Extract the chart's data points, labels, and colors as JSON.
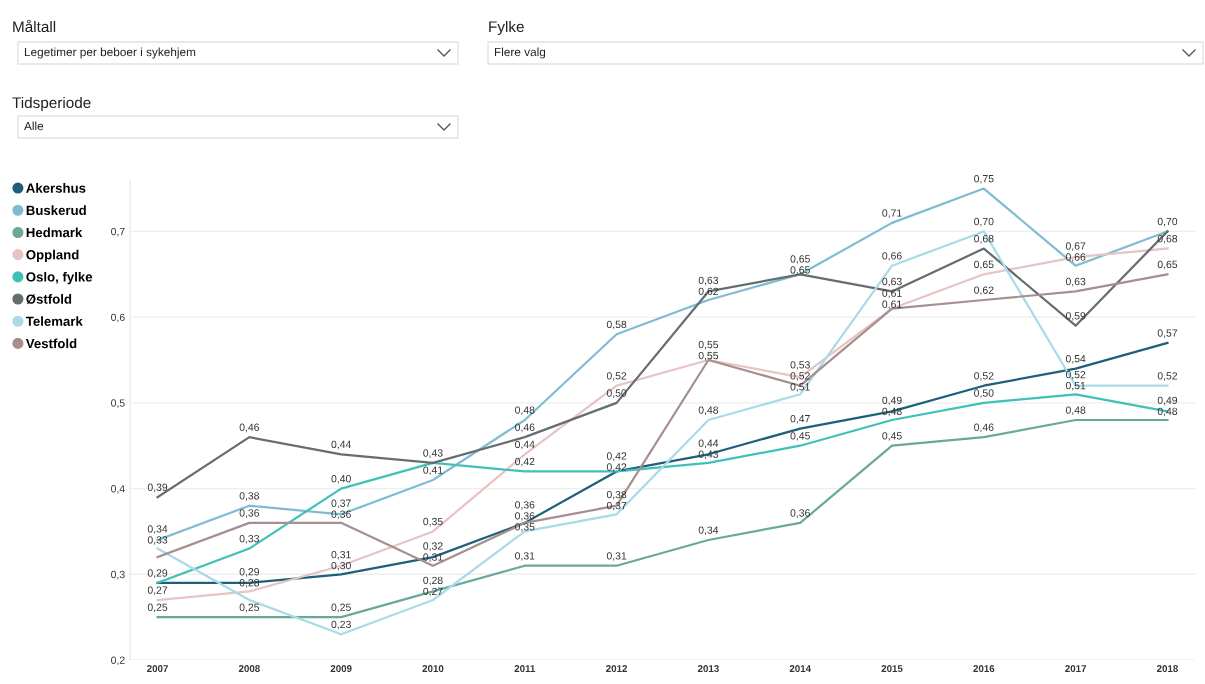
{
  "chart_data": {
    "type": "line",
    "annotations": [
      "Måltall",
      "Legetimer per beboer i sykehjem",
      "Fylke",
      "Flere valg",
      "Tidsperiode",
      "Alle"
    ],
    "categories": [
      "2007",
      "2008",
      "2009",
      "2010",
      "2011",
      "2012",
      "2013",
      "2014",
      "2015",
      "2016",
      "2017",
      "2018"
    ],
    "series": [
      {
        "name": "Akershus",
        "color": "#1f5f7a",
        "values": [
          0.29,
          0.29,
          0.3,
          0.32,
          0.36,
          0.42,
          0.44,
          0.47,
          0.49,
          0.52,
          0.54,
          0.57
        ],
        "value_labels": [
          "0,29",
          "0,29",
          "0,30",
          "0,32",
          "0,36",
          "0,42",
          "0,44",
          "0,47",
          "0,49",
          "0,52",
          "0,54",
          "0,57"
        ]
      },
      {
        "name": "Buskerud",
        "color": "#7fbcd2",
        "values": [
          0.34,
          0.38,
          0.37,
          0.41,
          0.48,
          0.58,
          0.62,
          0.65,
          0.71,
          0.75,
          0.66,
          0.7
        ],
        "value_labels": [
          "0,34",
          "0,38",
          "0,37",
          "0,41",
          "0,48",
          "0,58",
          "0,62",
          "0,65",
          "0,71",
          "0,75",
          "0,66",
          "0,70"
        ]
      },
      {
        "name": "Hedmark",
        "color": "#6aa89a",
        "values": [
          0.25,
          0.25,
          0.25,
          0.28,
          0.31,
          0.31,
          0.34,
          0.36,
          0.45,
          0.46,
          0.48,
          0.48
        ],
        "value_labels": [
          "0,25",
          "0,25",
          "0,25",
          "0,28",
          "0,31",
          "0,31",
          "0,34",
          "0,36",
          "0,45",
          "0,46",
          "0,48",
          "0,48"
        ]
      },
      {
        "name": "Oppland",
        "color": "#e8c3c3",
        "values": [
          0.27,
          0.28,
          0.31,
          0.35,
          0.44,
          0.52,
          0.55,
          0.53,
          0.61,
          0.65,
          0.67,
          0.68
        ],
        "value_labels": [
          "0,27",
          "0,28",
          "0,31",
          "0,35",
          "0,44",
          "0,52",
          "0,55",
          "0,53",
          "0,61",
          "0,65",
          "0,67",
          "0,68"
        ]
      },
      {
        "name": "Oslo, fylke",
        "color": "#40c0b8",
        "values": [
          0.29,
          0.33,
          0.4,
          0.43,
          0.42,
          0.42,
          0.43,
          0.45,
          0.48,
          0.5,
          0.51,
          0.49
        ],
        "value_labels": [
          null,
          "0,33",
          "0,40",
          null,
          "0,42",
          "0,42",
          "0,43",
          "0,45",
          "0,48",
          "0,50",
          "0,51",
          "0,49"
        ]
      },
      {
        "name": "Østfold",
        "color": "#666d70",
        "values": [
          0.39,
          0.46,
          0.44,
          0.43,
          0.46,
          0.5,
          0.63,
          0.65,
          0.63,
          0.68,
          0.59,
          0.7
        ],
        "value_labels": [
          "0,39",
          "0,46",
          "0,44",
          "0,43",
          "0,46",
          "0,50",
          "0,63",
          "0,65",
          "0,63",
          "0,68",
          "0,59",
          null
        ]
      },
      {
        "name": "Telemark",
        "color": "#a8dbe8",
        "values": [
          0.33,
          0.27,
          0.23,
          0.27,
          0.35,
          0.37,
          0.48,
          0.51,
          0.66,
          0.7,
          0.52,
          0.52
        ],
        "value_labels": [
          "0,33",
          null,
          "0,23",
          "0,27",
          "0,35",
          "0,37",
          "0,48",
          "0,51",
          "0,66",
          "0,70",
          "0,52",
          "0,52"
        ]
      },
      {
        "name": "Vestfold",
        "color": "#a58f8f",
        "values": [
          0.32,
          0.36,
          0.36,
          0.31,
          0.36,
          0.38,
          0.55,
          0.52,
          0.61,
          0.62,
          0.63,
          0.65
        ],
        "value_labels": [
          null,
          "0,36",
          "0,36",
          "0,31",
          "0,36",
          "0,38",
          "0,55",
          "0,52",
          "0,61",
          "0,62",
          "0,63",
          "0,65"
        ]
      }
    ],
    "ylim": [
      0.2,
      0.76
    ],
    "yticks": [
      {
        "value": 0.2,
        "label": "0,2"
      },
      {
        "value": 0.3,
        "label": "0,3"
      },
      {
        "value": 0.4,
        "label": "0,4"
      },
      {
        "value": 0.5,
        "label": "0,5"
      },
      {
        "value": 0.6,
        "label": "0,6"
      },
      {
        "value": 0.7,
        "label": "0,7"
      }
    ],
    "grid": "y",
    "legend": "left",
    "marker": "none",
    "line_style": "solid"
  }
}
